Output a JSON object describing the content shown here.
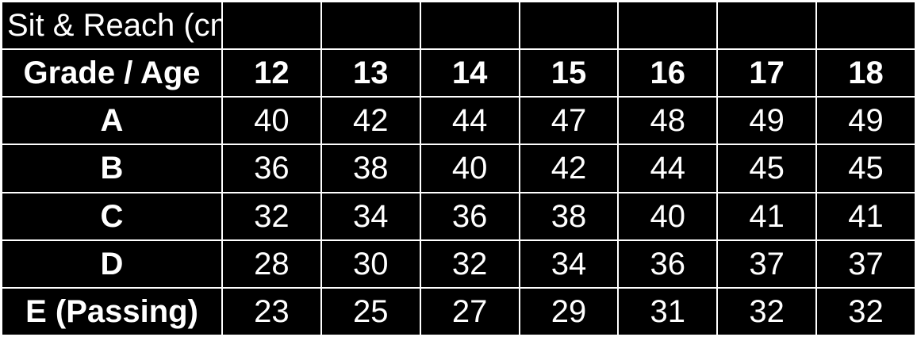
{
  "table": {
    "title": "Sit & Reach (cm)",
    "header_label": "Grade / Age",
    "ages": [
      "12",
      "13",
      "14",
      "15",
      "16",
      "17",
      "18"
    ],
    "rows": [
      {
        "grade": "A",
        "values": [
          "40",
          "42",
          "44",
          "47",
          "48",
          "49",
          "49"
        ]
      },
      {
        "grade": "B",
        "values": [
          "36",
          "38",
          "40",
          "42",
          "44",
          "45",
          "45"
        ]
      },
      {
        "grade": "C",
        "values": [
          "32",
          "34",
          "36",
          "38",
          "40",
          "41",
          "41"
        ]
      },
      {
        "grade": "D",
        "values": [
          "28",
          "30",
          "32",
          "34",
          "36",
          "37",
          "37"
        ]
      },
      {
        "grade": "E (Passing)",
        "values": [
          "23",
          "25",
          "27",
          "29",
          "31",
          "32",
          "32"
        ]
      }
    ]
  },
  "colors": {
    "background": "#000000",
    "text": "#ffffff",
    "grid_lines": "#ffffff"
  }
}
